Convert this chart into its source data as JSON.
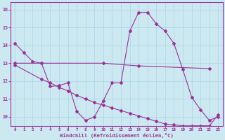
{
  "xlabel": "Windchill (Refroidissement éolien,°C)",
  "background_color": "#cce8f0",
  "line_color": "#993399",
  "grid_color": "#b0d8e8",
  "xlim": [
    -0.5,
    23.5
  ],
  "ylim": [
    9.5,
    16.4
  ],
  "xticks": [
    0,
    1,
    2,
    3,
    4,
    5,
    6,
    7,
    8,
    9,
    10,
    11,
    12,
    13,
    14,
    15,
    16,
    17,
    18,
    19,
    20,
    21,
    22,
    23
  ],
  "yticks": [
    10,
    11,
    12,
    13,
    14,
    15,
    16
  ],
  "line1": {
    "x": [
      0,
      1,
      2,
      3,
      4,
      5,
      6,
      7,
      8,
      9,
      10,
      11,
      12,
      13,
      14,
      15,
      16,
      17,
      18,
      19,
      20,
      21,
      22,
      23
    ],
    "y": [
      14.1,
      13.6,
      13.1,
      13.0,
      11.7,
      11.75,
      11.9,
      10.3,
      9.8,
      10.0,
      10.9,
      11.9,
      11.9,
      14.8,
      15.85,
      15.85,
      15.2,
      14.8,
      14.1,
      12.65,
      11.1,
      10.4,
      9.8,
      10.0
    ]
  },
  "line2": {
    "x": [
      0,
      3,
      10,
      14,
      22
    ],
    "y": [
      13.0,
      13.0,
      13.0,
      12.85,
      12.7
    ]
  },
  "line3": {
    "x": [
      0,
      3,
      4,
      5,
      6,
      7,
      8,
      9,
      10,
      11,
      12,
      13,
      14,
      15,
      16,
      17,
      18,
      19,
      20,
      21,
      22,
      23
    ],
    "y": [
      12.9,
      12.1,
      11.9,
      11.65,
      11.45,
      11.2,
      11.0,
      10.8,
      10.65,
      10.5,
      10.35,
      10.2,
      10.05,
      9.9,
      9.75,
      9.6,
      9.55,
      9.5,
      9.5,
      9.5,
      9.5,
      10.1
    ]
  }
}
